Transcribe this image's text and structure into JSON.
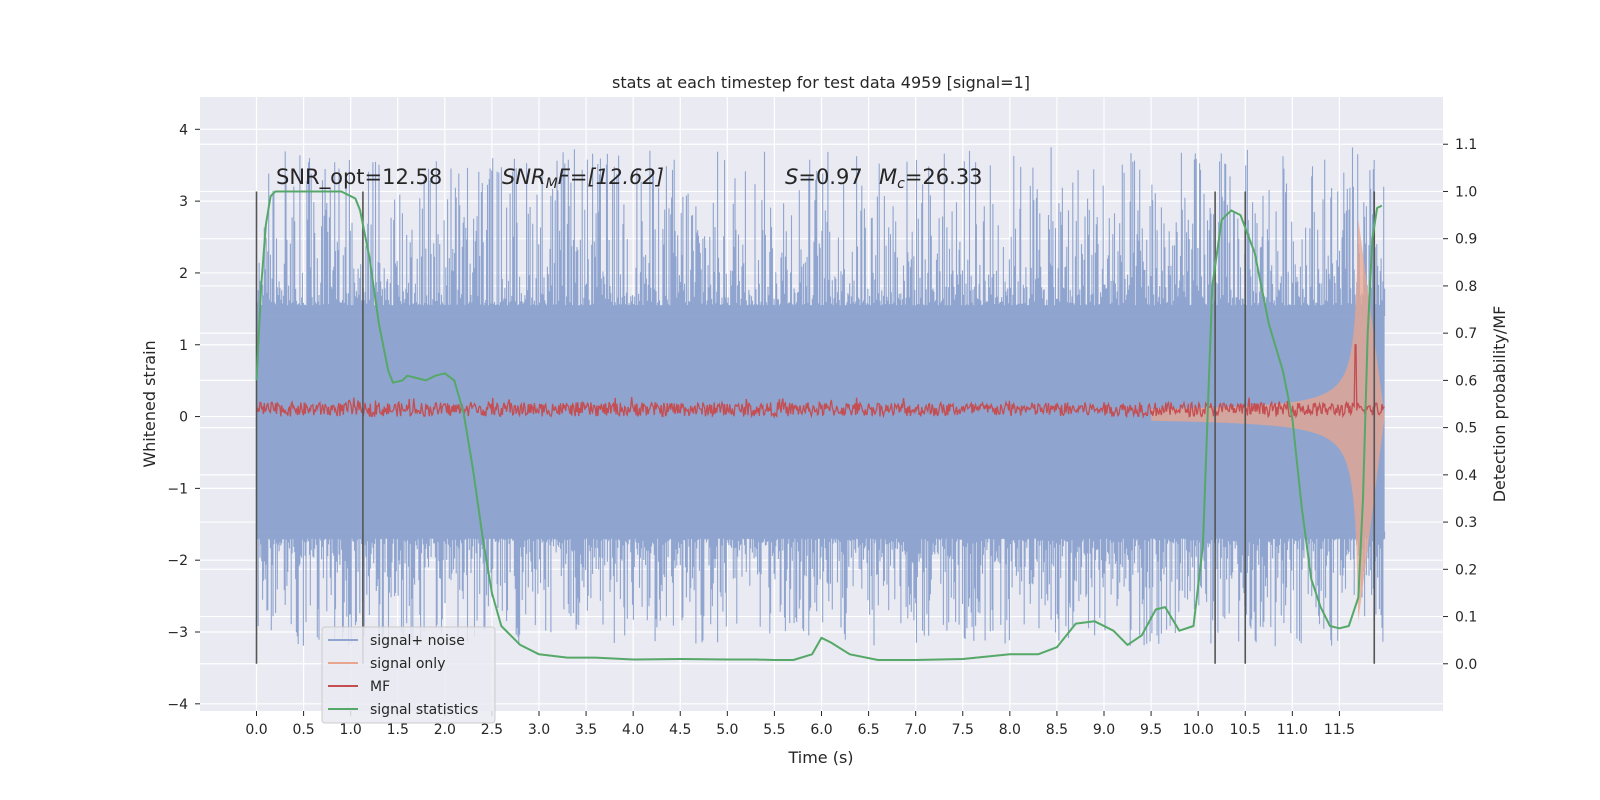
{
  "chart_data": {
    "type": "line",
    "title": "stats at each timestep for test data 4959 [signal=1]",
    "xlabel": "Time (s)",
    "ylabel": "Whitened strain",
    "y2label": "Detection probability/MF",
    "xlim": [
      -0.6,
      12.6
    ],
    "ylim": [
      -4.1,
      4.45
    ],
    "y2lim": [
      -0.1,
      1.2
    ],
    "x_ticks": [
      0.0,
      0.5,
      1.0,
      1.5,
      2.0,
      2.5,
      3.0,
      3.5,
      4.0,
      4.5,
      5.0,
      5.5,
      6.0,
      6.5,
      7.0,
      7.5,
      8.0,
      8.5,
      9.0,
      9.5,
      10.0,
      10.5,
      11.0,
      11.5
    ],
    "x_tick_labels": [
      "0.0",
      "0.5",
      "1.0",
      "1.5",
      "2.0",
      "2.5",
      "3.0",
      "3.5",
      "4.0",
      "4.5",
      "5.0",
      "5.5",
      "6.0",
      "6.5",
      "7.0",
      "7.5",
      "8.0",
      "8.5",
      "9.0",
      "9.5",
      "10.0",
      "10.5",
      "11.0",
      "11.5"
    ],
    "y_ticks": [
      -4,
      -3,
      -2,
      -1,
      0,
      1,
      2,
      3,
      4
    ],
    "y_tick_labels": [
      "−4",
      "−3",
      "−2",
      "−1",
      "0",
      "1",
      "2",
      "3",
      "4"
    ],
    "y2_ticks": [
      0.0,
      0.1,
      0.2,
      0.3,
      0.4,
      0.5,
      0.6,
      0.7,
      0.8,
      0.9,
      1.0,
      1.1
    ],
    "y2_tick_labels": [
      "0.0",
      "0.1",
      "0.2",
      "0.3",
      "0.4",
      "0.5",
      "0.6",
      "0.7",
      "0.8",
      "0.9",
      "1.0",
      "1.1"
    ],
    "grid": true,
    "legend_position": "lower-left",
    "background_color": "#eaeaf2",
    "annotations": [
      "SNR_opt=12.58",
      "SNR_MF=[12.62]",
      "S=0.97",
      "M_c=26.33"
    ],
    "annotation_parts": {
      "snr_opt": "SNR_opt=12.58",
      "snr_mf_main": "SNR",
      "snr_mf_sub": "M",
      "snr_mf_rest": "F=[12.62]",
      "s_main": "S",
      "s_rest": "=0.97",
      "mc_main": "M",
      "mc_sub": "c",
      "mc_rest": "=26.33"
    },
    "vertical_markers": [
      0.0,
      1.13,
      10.18,
      10.5,
      11.87
    ],
    "series": [
      {
        "name": "signal+ noise",
        "color": "#8fa5cf",
        "axis": "left",
        "band_low": -1.6,
        "band_high": 1.4,
        "spike_max": 4.1,
        "spike_min": -3.7,
        "x_range": [
          0.0,
          11.98
        ]
      },
      {
        "name": "signal only",
        "color": "#e8a68e",
        "axis": "left",
        "chirp_peak_x": 11.7,
        "chirp_peak_y": 3.0,
        "x_range": [
          9.5,
          11.98
        ]
      },
      {
        "name": "MF",
        "color": "#c44e52",
        "axis": "left",
        "mean": 0.1,
        "spread": 0.1,
        "peak_x": 11.67,
        "peak_y": 1.0,
        "x_range": [
          0.0,
          11.98
        ]
      },
      {
        "name": "signal statistics",
        "color": "#55a868",
        "axis": "right",
        "x": [
          0.0,
          0.05,
          0.1,
          0.15,
          0.2,
          0.3,
          0.5,
          0.7,
          0.9,
          1.0,
          1.05,
          1.1,
          1.2,
          1.3,
          1.4,
          1.45,
          1.55,
          1.6,
          1.7,
          1.8,
          1.9,
          2.0,
          2.1,
          2.2,
          2.3,
          2.4,
          2.5,
          2.6,
          2.8,
          3.0,
          3.3,
          3.6,
          4.0,
          4.5,
          5.0,
          5.3,
          5.5,
          5.7,
          5.9,
          6.0,
          6.1,
          6.3,
          6.6,
          7.0,
          7.5,
          8.0,
          8.3,
          8.5,
          8.7,
          8.9,
          9.1,
          9.25,
          9.4,
          9.55,
          9.65,
          9.8,
          9.95,
          10.05,
          10.15,
          10.25,
          10.35,
          10.45,
          10.6,
          10.75,
          10.9,
          11.0,
          11.1,
          11.2,
          11.3,
          11.4,
          11.5,
          11.6,
          11.7,
          11.75,
          11.8,
          11.85,
          11.9,
          11.95
        ],
        "y": [
          0.6,
          0.8,
          0.93,
          0.99,
          1.0,
          1.0,
          1.0,
          1.0,
          1.0,
          0.99,
          0.985,
          0.96,
          0.86,
          0.72,
          0.62,
          0.595,
          0.6,
          0.61,
          0.605,
          0.6,
          0.61,
          0.615,
          0.6,
          0.53,
          0.41,
          0.27,
          0.15,
          0.08,
          0.04,
          0.02,
          0.013,
          0.013,
          0.009,
          0.01,
          0.009,
          0.009,
          0.008,
          0.008,
          0.02,
          0.055,
          0.045,
          0.02,
          0.008,
          0.008,
          0.01,
          0.02,
          0.02,
          0.035,
          0.085,
          0.09,
          0.07,
          0.04,
          0.06,
          0.115,
          0.12,
          0.07,
          0.08,
          0.25,
          0.8,
          0.94,
          0.96,
          0.95,
          0.87,
          0.72,
          0.62,
          0.52,
          0.33,
          0.18,
          0.12,
          0.08,
          0.075,
          0.08,
          0.14,
          0.35,
          0.7,
          0.9,
          0.965,
          0.97
        ]
      }
    ]
  }
}
